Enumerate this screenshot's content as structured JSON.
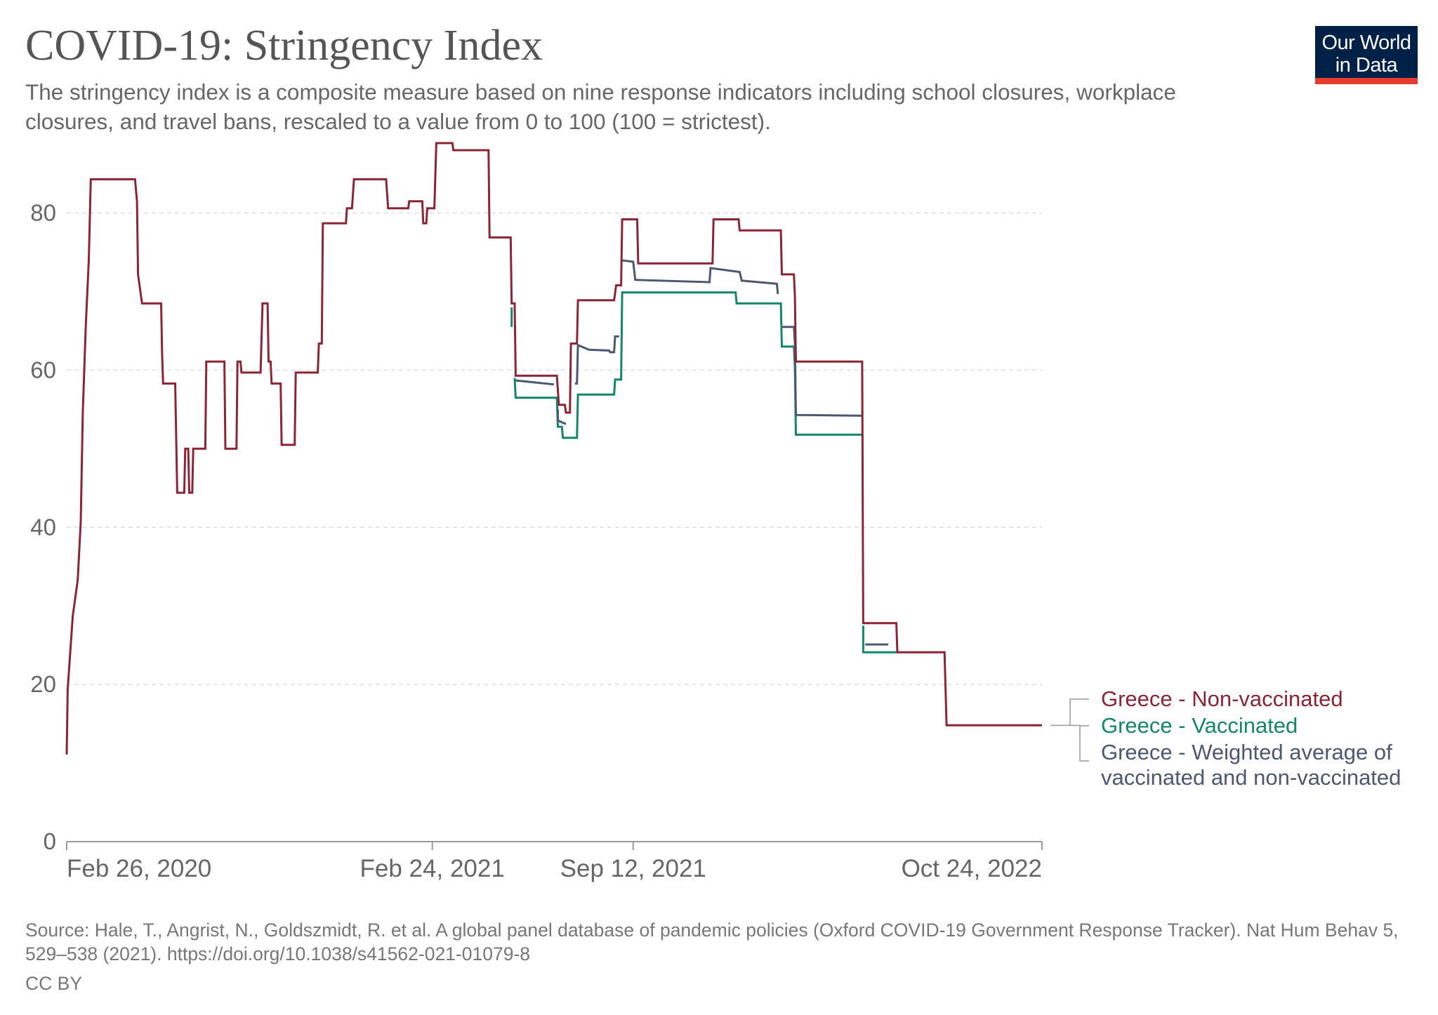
{
  "header": {
    "title": "COVID-19: Stringency Index",
    "subtitle": "The stringency index is a composite measure based on nine response indicators including school closures, workplace closures, and travel bans, rescaled to a value from 0 to 100 (100 = strictest).",
    "logo_line1": "Our World",
    "logo_line2": "in Data"
  },
  "footer": {
    "source": "Source: Hale, T., Angrist, N., Goldszmidt, R. et al. A global panel database of pandemic policies (Oxford COVID-19 Government Response Tracker). Nat Hum Behav 5, 529–538 (2021). https://doi.org/10.1038/s41562-021-01079-8",
    "license": "CC BY"
  },
  "chart_data": {
    "type": "line",
    "title": "COVID-19: Stringency Index",
    "xlabel": "",
    "ylabel": "",
    "grid": true,
    "ylim": [
      0,
      88
    ],
    "xlim": [
      0,
      971
    ],
    "x_unit": "days since Feb 26, 2020",
    "y_ticks": [
      0,
      20,
      40,
      60,
      80
    ],
    "x_ticks": [
      {
        "value": 0,
        "label": "Feb 26, 2020"
      },
      {
        "value": 364,
        "label": "Feb 24, 2021"
      },
      {
        "value": 564,
        "label": "Sep 12, 2021"
      },
      {
        "value": 971,
        "label": "Oct 24, 2022"
      }
    ],
    "legend_position": "right",
    "series": [
      {
        "name": "Greece - Non-vaccinated",
        "color": "#8b2535",
        "points": [
          [
            0,
            11.1
          ],
          [
            1,
            19.4
          ],
          [
            6,
            28.7
          ],
          [
            11,
            33.3
          ],
          [
            14,
            40.7
          ],
          [
            16,
            54.6
          ],
          [
            19,
            65.7
          ],
          [
            22,
            74.1
          ],
          [
            24,
            84.3
          ],
          [
            68,
            84.3
          ],
          [
            70,
            81.5
          ],
          [
            71,
            72.2
          ],
          [
            75,
            68.5
          ],
          [
            94,
            68.5
          ],
          [
            95,
            62
          ],
          [
            96,
            58.3
          ],
          [
            108,
            58.3
          ],
          [
            110,
            44.4
          ],
          [
            117,
            44.4
          ],
          [
            118,
            50
          ],
          [
            121,
            50
          ],
          [
            122,
            44.4
          ],
          [
            125,
            44.4
          ],
          [
            126,
            50
          ],
          [
            138,
            50
          ],
          [
            139,
            61.1
          ],
          [
            157,
            61.1
          ],
          [
            158,
            50
          ],
          [
            169,
            50
          ],
          [
            170,
            61.1
          ],
          [
            173,
            61.1
          ],
          [
            174,
            59.7
          ],
          [
            193,
            59.7
          ],
          [
            195,
            68.5
          ],
          [
            200,
            68.5
          ],
          [
            201,
            61.1
          ],
          [
            203,
            61.1
          ],
          [
            204,
            58.3
          ],
          [
            213,
            58.3
          ],
          [
            214,
            50.5
          ],
          [
            227,
            50.5
          ],
          [
            228,
            59.7
          ],
          [
            250,
            59.7
          ],
          [
            251,
            63.4
          ],
          [
            254,
            63.4
          ],
          [
            255,
            78.7
          ],
          [
            278,
            78.7
          ],
          [
            279,
            80.6
          ],
          [
            284,
            80.6
          ],
          [
            286,
            84.3
          ],
          [
            318,
            84.3
          ],
          [
            320,
            80.6
          ],
          [
            340,
            80.6
          ],
          [
            341,
            81.5
          ],
          [
            354,
            81.5
          ],
          [
            355,
            78.7
          ],
          [
            358,
            78.7
          ],
          [
            359,
            80.6
          ],
          [
            366,
            80.6
          ],
          [
            368,
            88.9
          ],
          [
            384,
            88.9
          ],
          [
            385,
            88
          ],
          [
            420,
            88
          ],
          [
            421,
            76.9
          ],
          [
            442,
            76.9
          ],
          [
            443,
            68.5
          ],
          [
            446,
            68.5
          ],
          [
            447,
            59.3
          ],
          [
            488,
            59.3
          ],
          [
            490,
            55.6
          ],
          [
            496,
            55.6
          ],
          [
            497,
            54.6
          ],
          [
            501,
            54.6
          ],
          [
            502,
            63.4
          ],
          [
            508,
            63.4
          ],
          [
            509,
            68.9
          ],
          [
            545,
            68.9
          ],
          [
            547,
            70.8
          ],
          [
            552,
            70.8
          ],
          [
            553,
            79.2
          ],
          [
            568,
            79.2
          ],
          [
            569,
            73.6
          ],
          [
            643,
            73.6
          ],
          [
            644,
            79.2
          ],
          [
            669,
            79.2
          ],
          [
            670,
            77.8
          ],
          [
            711,
            77.8
          ],
          [
            712,
            72.2
          ],
          [
            724,
            72.2
          ],
          [
            725,
            69.4
          ],
          [
            726,
            61.1
          ],
          [
            792,
            61.1
          ],
          [
            793,
            27.8
          ],
          [
            826,
            27.8
          ],
          [
            827,
            24.1
          ],
          [
            874,
            24.1
          ],
          [
            876,
            14.8
          ],
          [
            971,
            14.8
          ]
        ]
      },
      {
        "name": "Greece - Vaccinated",
        "color": "#138768",
        "segments": [
          [
            [
              443,
              68
            ],
            [
              443,
              65.5
            ]
          ],
          [
            [
              446,
              59
            ],
            [
              447,
              56.5
            ],
            [
              488,
              56.5
            ],
            [
              489,
              52.8
            ],
            [
              493,
              52.8
            ],
            [
              494,
              51.4
            ],
            [
              508,
              51.4
            ],
            [
              509,
              56.9
            ],
            [
              545,
              56.9
            ],
            [
              546,
              58.8
            ],
            [
              552,
              58.8
            ],
            [
              553,
              69.9
            ],
            [
              666,
              69.9
            ],
            [
              667,
              68.5
            ],
            [
              711,
              68.5
            ],
            [
              712,
              63
            ],
            [
              724,
              63
            ],
            [
              725,
              60.5
            ],
            [
              726,
              51.8
            ],
            [
              792,
              51.8
            ]
          ],
          [
            [
              793,
              27.5
            ],
            [
              793,
              24.1
            ],
            [
              827,
              24.1
            ]
          ]
        ]
      },
      {
        "name": "Greece - Weighted average of vaccinated and non-vaccinated",
        "color": "#4c5870",
        "segments": [
          [
            [
              447,
              58.7
            ],
            [
              485,
              58.2
            ]
          ],
          [
            [
              489,
              55
            ],
            [
              489,
              53.6
            ],
            [
              496,
              53.2
            ],
            [
              497,
              53.2
            ]
          ],
          [
            [
              506,
              58.3
            ],
            [
              508,
              58.3
            ],
            [
              509,
              63.2
            ],
            [
              520,
              62.6
            ],
            [
              540,
              62.5
            ],
            [
              541,
              62.3
            ],
            [
              545,
              62.3
            ],
            [
              546,
              64.3
            ],
            [
              550,
              64.3
            ]
          ],
          [
            [
              552,
              74
            ],
            [
              564,
              73.8
            ],
            [
              566,
              71.5
            ],
            [
              640,
              71.2
            ],
            [
              641,
              73
            ],
            [
              670,
              72.5
            ],
            [
              672,
              71.4
            ],
            [
              707,
              71
            ],
            [
              708,
              69.7
            ]
          ],
          [
            [
              712,
              65.5
            ],
            [
              724,
              65.5
            ],
            [
              725,
              63.4
            ],
            [
              726,
              54.3
            ],
            [
              792,
              54.2
            ]
          ],
          [
            [
              795,
              25.1
            ],
            [
              818,
              25.1
            ]
          ]
        ]
      }
    ]
  }
}
